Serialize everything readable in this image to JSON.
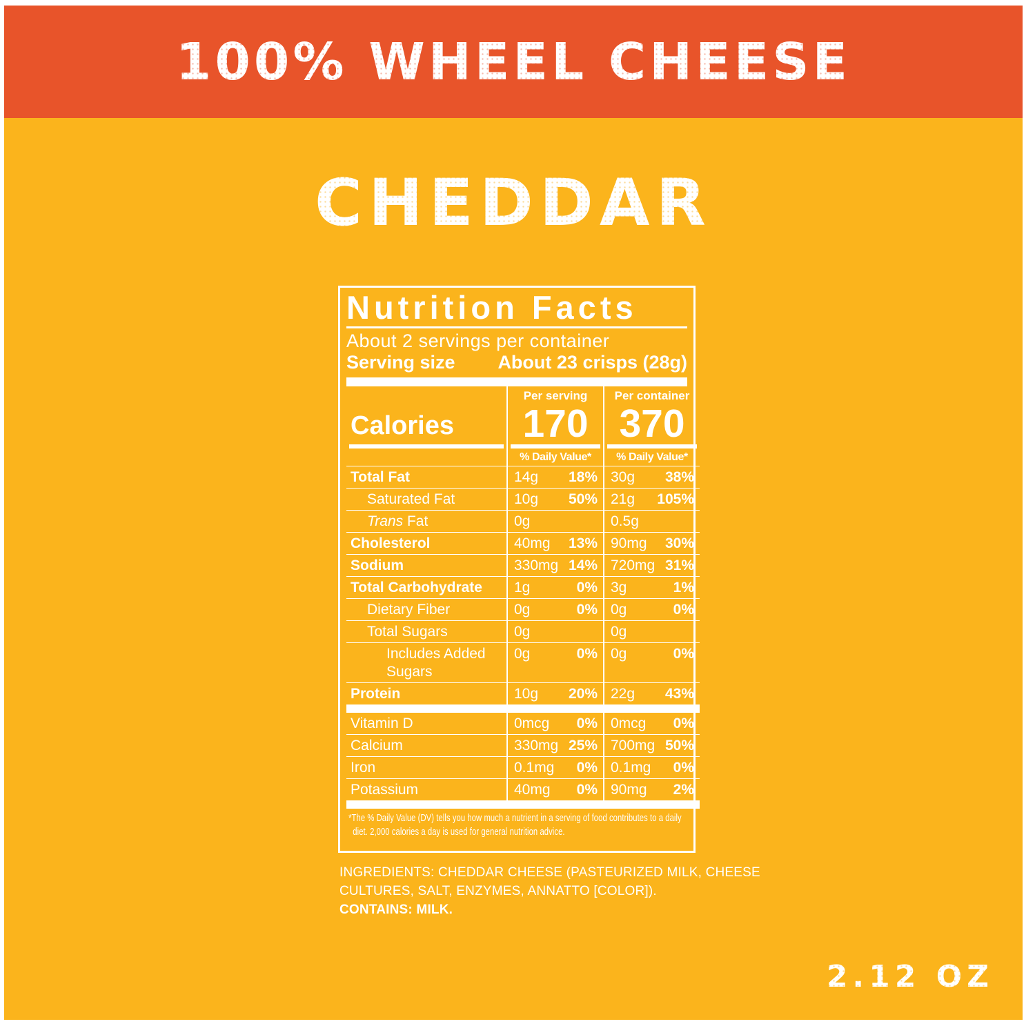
{
  "banner": {
    "title": "100% WHEEL CHEESE"
  },
  "product": {
    "name": "CHEDDAR",
    "net_weight": "2.12 OZ"
  },
  "colors": {
    "banner_orange": "#E8542A",
    "background_yellow": "#FBB41C",
    "label_text": "#FFFFFF"
  },
  "nutrition": {
    "title": "Nutrition Facts",
    "servings_per_container": "About 2 servings per container",
    "serving_size_label": "Serving size",
    "serving_size_value": "About 23 crisps (28g)",
    "calories_label": "Calories",
    "per_serving": {
      "header": "Per serving",
      "calories": "170",
      "dv_header": "% Daily Value*"
    },
    "per_container": {
      "header": "Per container",
      "calories": "370",
      "dv_header": "% Daily Value*"
    },
    "rows": [
      {
        "label": "Total Fat",
        "serving_amount": "14g",
        "serving_dv": "18%",
        "container_amount": "30g",
        "container_dv": "38%"
      },
      {
        "label": "Saturated Fat",
        "serving_amount": "10g",
        "serving_dv": "50%",
        "container_amount": "21g",
        "container_dv": "105%"
      },
      {
        "label_it": "Trans",
        "label": " Fat",
        "serving_amount": "0g",
        "serving_dv": "",
        "container_amount": "0.5g",
        "container_dv": ""
      },
      {
        "label": "Cholesterol",
        "serving_amount": "40mg",
        "serving_dv": "13%",
        "container_amount": "90mg",
        "container_dv": "30%"
      },
      {
        "label": "Sodium",
        "serving_amount": "330mg",
        "serving_dv": "14%",
        "container_amount": "720mg",
        "container_dv": "31%"
      },
      {
        "label": "Total Carbohydrate",
        "serving_amount": "1g",
        "serving_dv": "0%",
        "container_amount": "3g",
        "container_dv": "1%"
      },
      {
        "label": "Dietary Fiber",
        "serving_amount": "0g",
        "serving_dv": "0%",
        "container_amount": "0g",
        "container_dv": "0%"
      },
      {
        "label": "Total Sugars",
        "serving_amount": "0g",
        "serving_dv": "",
        "container_amount": "0g",
        "container_dv": ""
      },
      {
        "label": "Includes Added Sugars",
        "serving_amount": "0g",
        "serving_dv": "0%",
        "container_amount": "0g",
        "container_dv": "0%"
      },
      {
        "label": "Protein",
        "serving_amount": "10g",
        "serving_dv": "20%",
        "container_amount": "22g",
        "container_dv": "43%"
      },
      {
        "label": "Vitamin D",
        "serving_amount": "0mcg",
        "serving_dv": "0%",
        "container_amount": "0mcg",
        "container_dv": "0%"
      },
      {
        "label": "Calcium",
        "serving_amount": "330mg",
        "serving_dv": "25%",
        "container_amount": "700mg",
        "container_dv": "50%"
      },
      {
        "label": "Iron",
        "serving_amount": "0.1mg",
        "serving_dv": "0%",
        "container_amount": "0.1mg",
        "container_dv": "0%"
      },
      {
        "label": "Potassium",
        "serving_amount": "40mg",
        "serving_dv": "0%",
        "container_amount": "90mg",
        "container_dv": "2%"
      }
    ],
    "footnote": "*The % Daily Value (DV) tells you how much a nutrient in a serving of food contributes to a daily diet. 2,000 calories a day is used for general nutrition advice."
  },
  "ingredients": {
    "text": "INGREDIENTS: CHEDDAR CHEESE (PASTEURIZED MILK, CHEESE CULTURES, SALT, ENZYMES, ANNATTO [COLOR]).",
    "contains": "CONTAINS: MILK."
  }
}
